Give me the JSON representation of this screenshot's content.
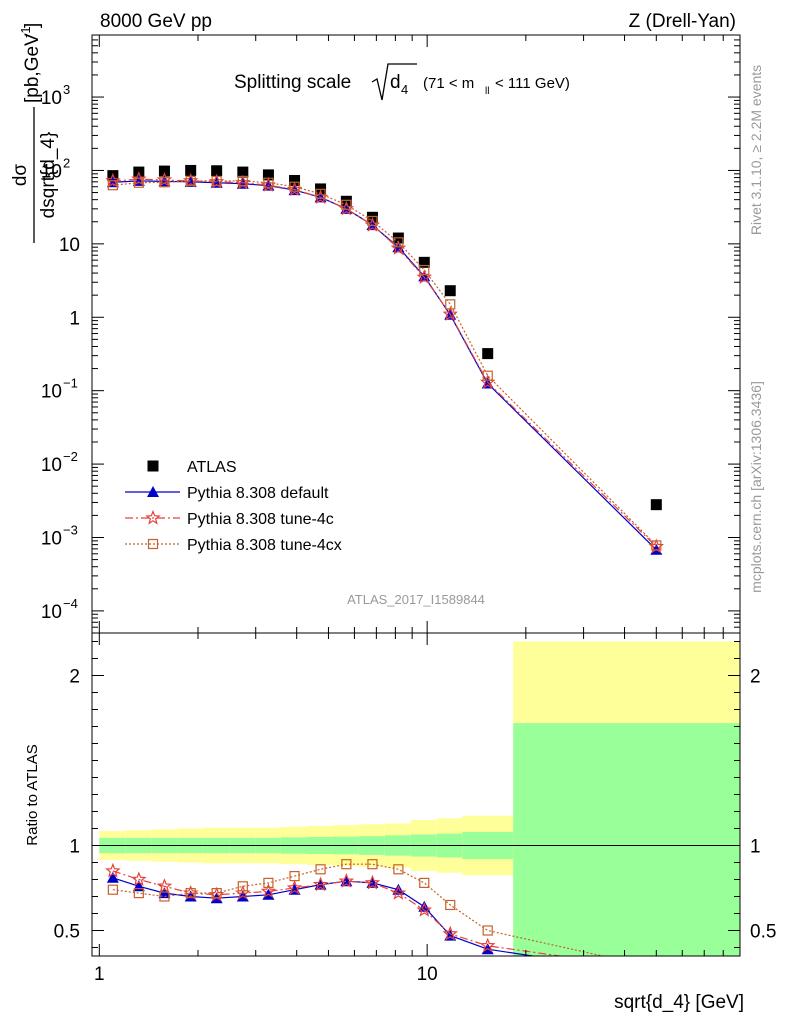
{
  "header": {
    "left": "8000 GeV pp",
    "right": "Z (Drell-Yan)"
  },
  "title": {
    "main": "Splitting scale",
    "symbol": "d",
    "symbol_sub": "4",
    "cut_left": "(71 < m",
    "cut_sub": "ll",
    "cut_right": " < 111 GeV)"
  },
  "side_text": {
    "rivet": "Rivet 3.1.10, ≥ 2.2M events",
    "mcplots": "mcplots.cern.ch [arXiv:1306.3436]"
  },
  "analysis_id": "ATLAS_2017_I1589844",
  "axes": {
    "main_ylabel_num": "dσ",
    "main_ylabel_den": "dsqrt{d_4}",
    "main_ylabel_unit": "[pb,GeV",
    "main_ylabel_unit_exp": "-1",
    "main_ylabel_unit_close": "]",
    "ratio_ylabel": "Ratio to ATLAS",
    "xlabel": "sqrt{d_4} [GeV]"
  },
  "main_yticks": [
    {
      "v": 1000,
      "base": "10",
      "exp": "3"
    },
    {
      "v": 100,
      "base": "10",
      "exp": "2"
    },
    {
      "v": 10,
      "base": "10",
      "exp": ""
    },
    {
      "v": 1,
      "base": "1",
      "exp": ""
    },
    {
      "v": 0.1,
      "base": "10",
      "exp": "−1"
    },
    {
      "v": 0.01,
      "base": "10",
      "exp": "−2"
    },
    {
      "v": 0.001,
      "base": "10",
      "exp": "−3"
    },
    {
      "v": 0.0001,
      "base": "10",
      "exp": "−4"
    }
  ],
  "ratio_yticks": [
    {
      "v": 0.5,
      "label": "0.5"
    },
    {
      "v": 1,
      "label": "1"
    },
    {
      "v": 2,
      "label": "2"
    }
  ],
  "xticks": [
    {
      "v": 1,
      "label": "1"
    },
    {
      "v": 10,
      "label": "10"
    }
  ],
  "legend": [
    {
      "label": "ATLAS",
      "color": "#000000",
      "marker": "square",
      "line": "none"
    },
    {
      "label": "Pythia 8.308 default",
      "color": "#0000cc",
      "marker": "triangle",
      "line": "solid"
    },
    {
      "label": "Pythia 8.308 tune-4c",
      "color": "#e8413a",
      "marker": "star",
      "line": "dashdot"
    },
    {
      "label": "Pythia 8.308 tune-4cx",
      "color": "#c8602a",
      "marker": "opensquare",
      "line": "dotted"
    }
  ],
  "chart_data": {
    "type": "scatter",
    "x_scale": "log",
    "xlim": [
      0.95,
      90
    ],
    "main_ylim": [
      5e-05,
      7000
    ],
    "main_y_scale": "log",
    "ratio_ylim": [
      0.35,
      2.25
    ],
    "bin_edges": [
      1.0,
      1.2,
      1.44,
      1.73,
      2.07,
      2.49,
      2.99,
      3.58,
      4.3,
      5.16,
      6.19,
      7.43,
      8.92,
      10.7,
      12.8,
      18.3,
      90
    ],
    "x": [
      1.1,
      1.32,
      1.58,
      1.9,
      2.28,
      2.74,
      3.28,
      3.94,
      4.73,
      5.67,
      6.81,
      8.17,
      9.8,
      11.76,
      15.3,
      50
    ],
    "series": [
      {
        "name": "ATLAS",
        "values": [
          85,
          95,
          98,
          100,
          99,
          95,
          87,
          73,
          56,
          38,
          23,
          12,
          5.6,
          2.3,
          0.32,
          0.0028
        ]
      },
      {
        "name": "Pythia 8.308 default",
        "values": [
          69,
          72,
          71,
          70,
          68,
          66,
          62,
          54,
          43,
          30,
          18,
          9.0,
          3.6,
          1.08,
          0.125,
          0.00068
        ]
      },
      {
        "name": "Pythia 8.308 tune-4c",
        "values": [
          72,
          76,
          74,
          72,
          70,
          68,
          63,
          55,
          43,
          30,
          18,
          8.7,
          3.5,
          1.1,
          0.13,
          0.00075
        ]
      },
      {
        "name": "Pythia 8.308 tune-4cx",
        "values": [
          63,
          68,
          69,
          72,
          72,
          72,
          68,
          60,
          48,
          34,
          20.5,
          10.5,
          4.4,
          1.5,
          0.16,
          0.00078
        ]
      }
    ],
    "ratio_series": [
      {
        "name": "Pythia 8.308 default",
        "values": [
          0.81,
          0.76,
          0.72,
          0.7,
          0.69,
          0.7,
          0.71,
          0.74,
          0.77,
          0.79,
          0.78,
          0.74,
          0.64,
          0.47,
          0.39,
          0.24
        ]
      },
      {
        "name": "Pythia 8.308 tune-4c",
        "values": [
          0.85,
          0.8,
          0.76,
          0.72,
          0.71,
          0.72,
          0.73,
          0.75,
          0.77,
          0.79,
          0.78,
          0.72,
          0.62,
          0.48,
          0.41,
          0.27
        ]
      },
      {
        "name": "Pythia 8.308 tune-4cx",
        "values": [
          0.74,
          0.72,
          0.7,
          0.72,
          0.72,
          0.76,
          0.78,
          0.82,
          0.86,
          0.89,
          0.89,
          0.86,
          0.78,
          0.65,
          0.5,
          0.28
        ]
      }
    ],
    "uncertainty_bands": {
      "inner_half": [
        0.045,
        0.045,
        0.045,
        0.045,
        0.045,
        0.045,
        0.045,
        0.048,
        0.05,
        0.052,
        0.055,
        0.06,
        0.065,
        0.07,
        0.08,
        0.72
      ],
      "outer_half": [
        0.085,
        0.09,
        0.095,
        0.1,
        0.105,
        0.105,
        0.105,
        0.11,
        0.115,
        0.12,
        0.125,
        0.13,
        0.15,
        0.16,
        0.175,
        1.2
      ]
    },
    "band_colors": {
      "inner": "#99ff99",
      "outer": "#ffff99"
    }
  }
}
